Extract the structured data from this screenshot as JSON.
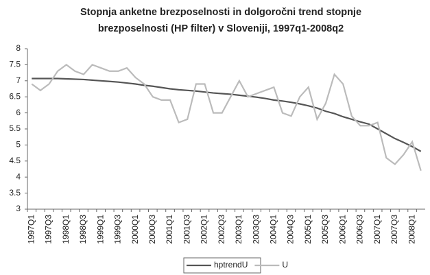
{
  "chart_data": {
    "type": "line",
    "title": [
      "Stopnja anketne brezposelnosti in dolgoročni trend stopnje",
      "brezposelnosti (HP filter) v Sloveniji, 1997q1-2008q2"
    ],
    "categories": [
      "1997Q1",
      null,
      "1997Q3",
      null,
      "1998Q1",
      null,
      "1998Q3",
      null,
      "1999Q1",
      null,
      "1999Q3",
      null,
      "2000Q1",
      null,
      "2000Q3",
      null,
      "2001Q1",
      null,
      "2001Q3",
      null,
      "2002Q1",
      null,
      "2002Q3",
      null,
      "2003Q1",
      null,
      "2003Q3",
      null,
      "2004Q1",
      null,
      "2004Q3",
      null,
      "2005Q1",
      null,
      "2005Q3",
      null,
      "2006Q1",
      null,
      "2006Q3",
      null,
      "2007Q1",
      null,
      "2007Q3",
      null,
      "2008Q1",
      null
    ],
    "series": [
      {
        "name": "hptrendU",
        "color": "#555555",
        "values": [
          7.07,
          7.07,
          7.07,
          7.07,
          7.06,
          7.05,
          7.04,
          7.02,
          7.0,
          6.98,
          6.96,
          6.93,
          6.9,
          6.86,
          6.83,
          6.79,
          6.75,
          6.72,
          6.7,
          6.68,
          6.65,
          6.62,
          6.6,
          6.58,
          6.55,
          6.52,
          6.49,
          6.45,
          6.4,
          6.37,
          6.33,
          6.28,
          6.22,
          6.15,
          6.05,
          5.98,
          5.88,
          5.8,
          5.72,
          5.65,
          5.5,
          5.35,
          5.2,
          5.08,
          4.95,
          4.8
        ]
      },
      {
        "name": "U",
        "color": "#bbbbbb",
        "values": [
          6.9,
          6.7,
          6.9,
          7.3,
          7.5,
          7.3,
          7.2,
          7.5,
          7.4,
          7.3,
          7.3,
          7.4,
          7.1,
          6.9,
          6.5,
          6.4,
          6.4,
          5.7,
          5.8,
          6.9,
          6.9,
          6.0,
          6.0,
          6.5,
          7.0,
          6.5,
          6.6,
          6.7,
          6.8,
          6.0,
          5.9,
          6.5,
          6.8,
          5.8,
          6.3,
          7.2,
          6.9,
          5.9,
          5.6,
          5.6,
          5.7,
          4.6,
          4.4,
          4.7,
          5.1,
          4.2
        ]
      }
    ],
    "ylim": [
      3,
      8
    ],
    "yticks": [
      3,
      3.5,
      4,
      4.5,
      5,
      5.5,
      6,
      6.5,
      7,
      7.5,
      8
    ],
    "grid": false,
    "legend": "bottom"
  }
}
